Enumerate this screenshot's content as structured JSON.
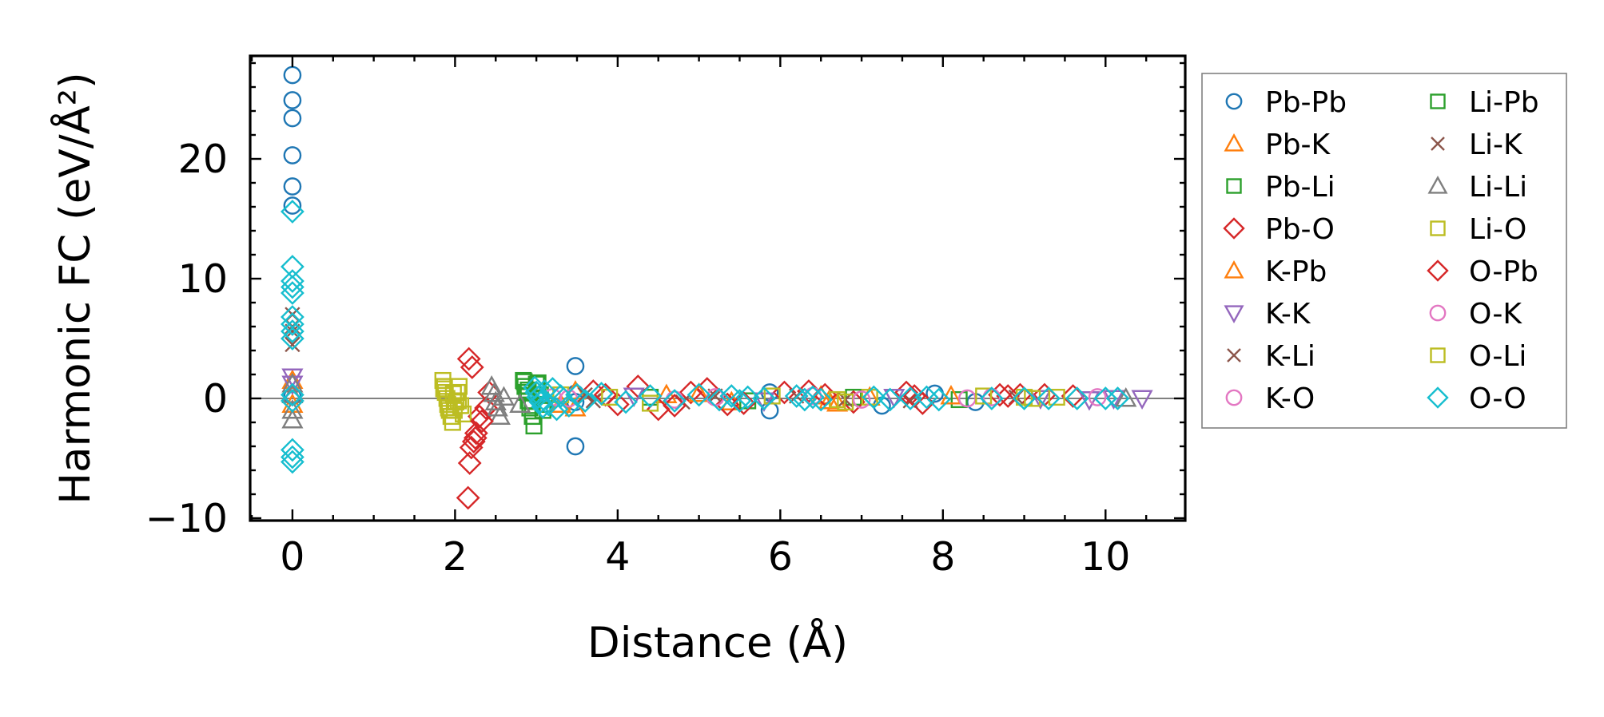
{
  "chart_data": {
    "type": "scatter",
    "title": "",
    "xlabel": "Distance (Å)",
    "ylabel": "Harmonic FC (eV/Å²)",
    "xlim": [
      -0.52,
      10.98
    ],
    "ylim": [
      -10.2,
      28.6
    ],
    "xticks": [
      0,
      2,
      4,
      6,
      8,
      10
    ],
    "xtick_labels": [
      "0",
      "2",
      "4",
      "6",
      "8",
      "10"
    ],
    "yticks": [
      -10,
      0,
      10,
      20
    ],
    "ytick_labels": [
      "−10",
      "0",
      "10",
      "20"
    ],
    "zero_line": 0,
    "grid": false,
    "legend_position": "outside-right",
    "series": [
      {
        "name": "Pb-Pb",
        "marker": "circle",
        "color": "#1f77b4",
        "x": [
          0,
          0,
          0,
          0,
          0,
          0,
          0,
          3.48,
          3.48,
          3.48,
          3.48,
          5.87,
          5.87,
          7.25,
          7.9,
          8.4
        ],
        "y": [
          27.0,
          24.9,
          23.4,
          20.3,
          17.7,
          16.1,
          0.2,
          2.7,
          0.4,
          -0.3,
          -4.0,
          0.5,
          -1.0,
          -0.6,
          0.4,
          -0.3
        ]
      },
      {
        "name": "Pb-K",
        "marker": "triangle-up",
        "color": "#ff7f0e",
        "x": [
          0,
          0,
          3.48,
          3.48,
          4.6,
          5.4,
          6.5,
          6.7,
          7.1
        ],
        "y": [
          1.5,
          -0.5,
          -0.8,
          0.6,
          0.3,
          -0.3,
          0.2,
          -0.4,
          0.1
        ]
      },
      {
        "name": "Pb-Li",
        "marker": "square",
        "color": "#2ca02c",
        "x": [
          2.84,
          2.86,
          2.88,
          2.9,
          2.92,
          2.95,
          2.97,
          3.0,
          3.05,
          3.1,
          4.4,
          5.6,
          6.9,
          8.2
        ],
        "y": [
          1.5,
          1.0,
          0.5,
          -0.2,
          -0.8,
          -1.5,
          -2.3,
          1.2,
          0.3,
          -0.5,
          0.1,
          -0.2,
          0.1,
          -0.1
        ]
      },
      {
        "name": "Pb-O",
        "marker": "diamond",
        "color": "#d62728",
        "x": [
          2.16,
          2.18,
          2.2,
          2.23,
          2.26,
          2.3,
          2.38,
          2.42,
          3.7,
          4.0,
          4.25,
          4.5,
          4.9,
          5.1,
          5.35,
          6.05,
          6.35,
          6.9,
          7.55,
          7.75,
          8.7,
          8.95,
          9.25,
          9.6
        ],
        "y": [
          -8.3,
          -5.4,
          -4.1,
          -3.6,
          -2.9,
          -1.5,
          -0.8,
          0.5,
          0.6,
          -0.5,
          1.0,
          -0.9,
          0.5,
          0.8,
          -0.5,
          0.5,
          0.6,
          -0.3,
          0.5,
          -0.4,
          0.3,
          0.3,
          0.3,
          0.2
        ]
      },
      {
        "name": "K-Pb",
        "marker": "triangle-up",
        "color": "#ff7f0e",
        "x": [
          3.3,
          5.0,
          6.6,
          8.1
        ],
        "y": [
          -0.5,
          0.4,
          -0.2,
          0.2
        ]
      },
      {
        "name": "K-K",
        "marker": "triangle-down",
        "color": "#9467bd",
        "x": [
          0,
          0,
          4.2,
          5.8,
          7.4,
          9.2,
          9.8,
          10.1,
          10.45
        ],
        "y": [
          1.8,
          1.2,
          0.2,
          -0.2,
          0.1,
          0.0,
          -0.1,
          0.0,
          0.0
        ]
      },
      {
        "name": "K-Li",
        "marker": "x",
        "color": "#8c564b",
        "x": [
          0,
          0,
          0,
          3.6,
          4.8,
          6.2,
          7.6,
          8.9
        ],
        "y": [
          7.0,
          5.6,
          4.5,
          0.3,
          -0.3,
          0.2,
          -0.2,
          0.1
        ]
      },
      {
        "name": "K-O",
        "marker": "circle",
        "color": "#e377c2",
        "x": [
          3.2,
          4.7,
          6.4,
          8.3,
          9.9
        ],
        "y": [
          0.1,
          -0.1,
          0.2,
          0.0,
          0.1
        ]
      },
      {
        "name": "Li-Pb",
        "marker": "square",
        "color": "#2ca02c",
        "x": [
          2.85,
          2.9,
          2.95,
          3.02,
          3.08
        ],
        "y": [
          1.4,
          0.7,
          -0.6,
          1.3,
          -1.0
        ]
      },
      {
        "name": "Li-K",
        "marker": "x",
        "color": "#8c564b",
        "x": [
          0,
          3.7,
          5.2,
          6.8
        ],
        "y": [
          6.0,
          -0.2,
          0.2,
          -0.1
        ]
      },
      {
        "name": "Li-Li",
        "marker": "triangle-up",
        "color": "#7f7f7f",
        "x": [
          0,
          0,
          0,
          0,
          2.45,
          2.48,
          2.5,
          2.52,
          2.55,
          2.6,
          2.8,
          10.25
        ],
        "y": [
          1.2,
          0.3,
          -1.0,
          -1.8,
          1.0,
          0.4,
          -0.3,
          -0.8,
          -1.5,
          0.1,
          -0.5,
          0.0
        ]
      },
      {
        "name": "Li-O",
        "marker": "square",
        "color": "#bcbd22",
        "x": [
          1.85,
          1.87,
          1.88,
          1.9,
          1.91,
          1.93,
          1.95,
          1.97,
          1.99,
          2.01,
          2.03,
          2.05,
          2.07,
          2.1,
          3.3,
          4.4,
          5.9,
          6.8,
          7.1,
          8.5,
          9.1,
          9.4
        ],
        "y": [
          1.5,
          1.0,
          0.5,
          0.0,
          -0.5,
          -1.0,
          -1.5,
          -2.0,
          -1.0,
          -0.3,
          0.5,
          1.0,
          -0.6,
          -1.3,
          0.3,
          -0.4,
          0.2,
          -0.3,
          0.1,
          0.2,
          0.0,
          0.1
        ]
      },
      {
        "name": "O-Pb",
        "marker": "diamond",
        "color": "#d62728",
        "x": [
          2.17,
          2.21,
          2.25,
          2.33,
          3.85,
          4.7,
          5.55,
          6.55,
          7.65,
          8.8
        ],
        "y": [
          3.3,
          2.6,
          -3.3,
          -1.9,
          0.3,
          -0.6,
          -0.4,
          0.3,
          0.2,
          0.2
        ]
      },
      {
        "name": "O-K",
        "marker": "circle",
        "color": "#e377c2",
        "x": [
          3.4,
          5.2,
          7.0,
          8.6
        ],
        "y": [
          0.0,
          0.1,
          -0.1,
          0.1
        ]
      },
      {
        "name": "O-Li",
        "marker": "square",
        "color": "#bcbd22",
        "x": [
          1.86,
          1.92,
          1.98,
          2.04,
          3.9,
          6.7,
          9.0
        ],
        "y": [
          0.8,
          -0.8,
          0.4,
          -0.2,
          0.1,
          -0.1,
          0.1
        ]
      },
      {
        "name": "O-O",
        "marker": "diamond",
        "color": "#17becf",
        "x": [
          0,
          0,
          0,
          0,
          0,
          0,
          0,
          0,
          0,
          0,
          0,
          0,
          0,
          0,
          2.98,
          3.0,
          3.02,
          3.05,
          3.08,
          3.1,
          3.15,
          3.2,
          3.25,
          3.3,
          3.4,
          3.5,
          3.6,
          3.8,
          4.1,
          4.4,
          4.7,
          5.0,
          5.25,
          5.4,
          5.5,
          5.6,
          5.8,
          6.2,
          6.3,
          6.4,
          6.5,
          7.15,
          7.35,
          7.6,
          7.8,
          7.95,
          8.6,
          9.0,
          9.3,
          9.65,
          10.0,
          10.15
        ],
        "y": [
          15.6,
          11.0,
          9.8,
          9.3,
          8.8,
          6.8,
          6.2,
          5.6,
          5.0,
          0.3,
          -0.2,
          -4.3,
          -4.9,
          -5.3,
          0.9,
          0.5,
          0.1,
          -0.3,
          -0.7,
          0.6,
          -0.5,
          0.8,
          -0.9,
          0.2,
          -0.6,
          0.3,
          -0.2,
          0.4,
          -0.3,
          0.2,
          -0.2,
          0.3,
          -0.1,
          0.2,
          -0.2,
          0.1,
          0.0,
          0.2,
          -0.1,
          0.1,
          -0.1,
          0.1,
          -0.1,
          0.0,
          0.1,
          -0.1,
          0.0,
          0.0,
          0.0,
          0.0,
          0.0,
          0.0
        ]
      }
    ]
  }
}
